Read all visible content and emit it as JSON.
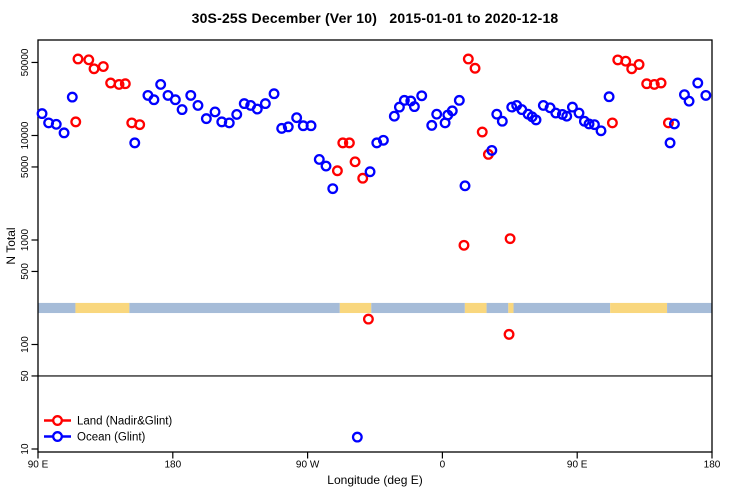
{
  "title": "30S-25S December (Ver 10)   2015-01-01 to 2020-12-18",
  "axes": {
    "x": {
      "label": "Longitude (deg E)",
      "range": [
        90,
        540
      ],
      "note": "longitude axis wraps eastward past 180",
      "ticks": [
        {
          "pos": 90,
          "label": "90 E"
        },
        {
          "pos": 180,
          "label": "180"
        },
        {
          "pos": 270,
          "label": "90 W"
        },
        {
          "pos": 360,
          "label": "0"
        },
        {
          "pos": 450,
          "label": "90 E"
        },
        {
          "pos": 540,
          "label": "180"
        }
      ]
    },
    "y": {
      "label": "N Total",
      "scale": "log",
      "range": [
        10,
        60000
      ],
      "ticks": [
        {
          "value": 10,
          "label": "10"
        },
        {
          "value": 50,
          "label": "50"
        },
        {
          "value": 100,
          "label": "100"
        },
        {
          "value": 500,
          "label": "500"
        },
        {
          "value": 1000,
          "label": "1000"
        },
        {
          "value": 5000,
          "label": "5000"
        },
        {
          "value": 10000,
          "label": "10000"
        },
        {
          "value": 50000,
          "label": "50000"
        }
      ]
    }
  },
  "reference_line": {
    "value": 50,
    "color": "#4d4d4d"
  },
  "land_ocean_strip": {
    "value_range": [
      200,
      250
    ],
    "colors": {
      "land": "#F9D77E",
      "ocean": "#A6BCD8"
    },
    "segments": [
      {
        "from": 90,
        "to": 115,
        "type": "ocean"
      },
      {
        "from": 115,
        "to": 151,
        "type": "land"
      },
      {
        "from": 151,
        "to": 291.5,
        "type": "ocean"
      },
      {
        "from": 291.5,
        "to": 312.5,
        "type": "land"
      },
      {
        "from": 312.5,
        "to": 375,
        "type": "ocean"
      },
      {
        "from": 375,
        "to": 389.5,
        "type": "land"
      },
      {
        "from": 389.5,
        "to": 404,
        "type": "ocean"
      },
      {
        "from": 404,
        "to": 407.5,
        "type": "land"
      },
      {
        "from": 407.5,
        "to": 472,
        "type": "ocean"
      },
      {
        "from": 472,
        "to": 510,
        "type": "land"
      },
      {
        "from": 510,
        "to": 540,
        "type": "ocean"
      }
    ]
  },
  "legend": {
    "items": [
      {
        "label": "Land (Nadir&Glint)",
        "color": "#FF0000"
      },
      {
        "label": "Ocean (Glint)",
        "color": "#0000FF"
      }
    ]
  },
  "chart_data": {
    "type": "scatter",
    "title": "30S-25S December (Ver 10)   2015-01-01 to 2020-12-18",
    "xlabel": "Longitude (deg E)",
    "ylabel": "N Total",
    "xlim": [
      90,
      540
    ],
    "ylim_log": [
      10,
      60000
    ],
    "marker": "open-circle",
    "series": [
      {
        "name": "Land (Nadir&Glint)",
        "color": "#FF0000",
        "points": [
          [
            116.7,
            54000
          ],
          [
            123.9,
            53000
          ],
          [
            127.4,
            43500
          ],
          [
            133.6,
            45700
          ],
          [
            138.5,
            31800
          ],
          [
            144.1,
            30800
          ],
          [
            148.3,
            31300
          ],
          [
            115.2,
            13500
          ],
          [
            152.6,
            13200
          ],
          [
            157.9,
            12700
          ],
          [
            289.9,
            4600
          ],
          [
            293.5,
            8500
          ],
          [
            297.9,
            8500
          ],
          [
            301.7,
            5600
          ],
          [
            306.8,
            3900
          ],
          [
            310.6,
            175
          ],
          [
            374.4,
            890
          ],
          [
            377.3,
            54000
          ],
          [
            381.8,
            44000
          ],
          [
            386.6,
            10800
          ],
          [
            390.7,
            6600
          ],
          [
            404.5,
            125
          ],
          [
            405.2,
            1030
          ],
          [
            473.5,
            13200
          ],
          [
            477.1,
            52900
          ],
          [
            482.4,
            51400
          ],
          [
            486.4,
            43500
          ],
          [
            491.3,
            47800
          ],
          [
            496.4,
            31300
          ],
          [
            501.5,
            30800
          ],
          [
            506.0,
            31800
          ],
          [
            510.9,
            13200
          ]
        ]
      },
      {
        "name": "Ocean (Glint)",
        "color": "#0000FF",
        "points": [
          [
            92.7,
            16200
          ],
          [
            97.1,
            13200
          ],
          [
            102.2,
            12800
          ],
          [
            107.4,
            10600
          ],
          [
            112.9,
            23300
          ],
          [
            154.6,
            8500
          ],
          [
            163.4,
            24200
          ],
          [
            167.4,
            22000
          ],
          [
            171.9,
            30800
          ],
          [
            176.8,
            24200
          ],
          [
            181.7,
            22000
          ],
          [
            186.2,
            17700
          ],
          [
            192.0,
            24200
          ],
          [
            196.8,
            19400
          ],
          [
            202.4,
            14500
          ],
          [
            208.2,
            16800
          ],
          [
            212.7,
            13500
          ],
          [
            217.7,
            13200
          ],
          [
            222.7,
            15900
          ],
          [
            227.7,
            20200
          ],
          [
            232.0,
            19400
          ],
          [
            236.4,
            17900
          ],
          [
            241.8,
            20200
          ],
          [
            247.6,
            25100
          ],
          [
            252.7,
            11700
          ],
          [
            257.1,
            12100
          ],
          [
            262.7,
            14800
          ],
          [
            267.1,
            12400
          ],
          [
            272.3,
            12400
          ],
          [
            277.8,
            5900
          ],
          [
            282.3,
            5100
          ],
          [
            286.8,
            3100
          ],
          [
            303.2,
            13
          ],
          [
            311.7,
            4500
          ],
          [
            316.2,
            8500
          ],
          [
            320.6,
            9000
          ],
          [
            327.9,
            15300
          ],
          [
            331.3,
            18700
          ],
          [
            334.6,
            21700
          ],
          [
            338.9,
            21400
          ],
          [
            341.3,
            18900
          ],
          [
            346.2,
            24000
          ],
          [
            352.9,
            12500
          ],
          [
            356.2,
            16000
          ],
          [
            361.8,
            13200
          ],
          [
            363.6,
            15700
          ],
          [
            366.6,
            17200
          ],
          [
            371.3,
            21700
          ],
          [
            375.1,
            3300
          ],
          [
            393.0,
            7200
          ],
          [
            396.3,
            16000
          ],
          [
            400.0,
            13700
          ],
          [
            406.3,
            18700
          ],
          [
            409.6,
            19400
          ],
          [
            413.0,
            17700
          ],
          [
            417.2,
            16000
          ],
          [
            419.9,
            15100
          ],
          [
            422.5,
            14100
          ],
          [
            427.4,
            19400
          ],
          [
            431.9,
            18400
          ],
          [
            435.7,
            16400
          ],
          [
            440.1,
            15900
          ],
          [
            443.0,
            15300
          ],
          [
            446.8,
            18700
          ],
          [
            451.2,
            16400
          ],
          [
            454.8,
            13700
          ],
          [
            457.9,
            12900
          ],
          [
            461.5,
            12700
          ],
          [
            465.9,
            11100
          ],
          [
            471.3,
            23500
          ],
          [
            512.0,
            8500
          ],
          [
            514.9,
            12900
          ],
          [
            521.6,
            24600
          ],
          [
            524.7,
            21300
          ],
          [
            530.5,
            31800
          ],
          [
            535.9,
            24200
          ]
        ]
      }
    ]
  }
}
